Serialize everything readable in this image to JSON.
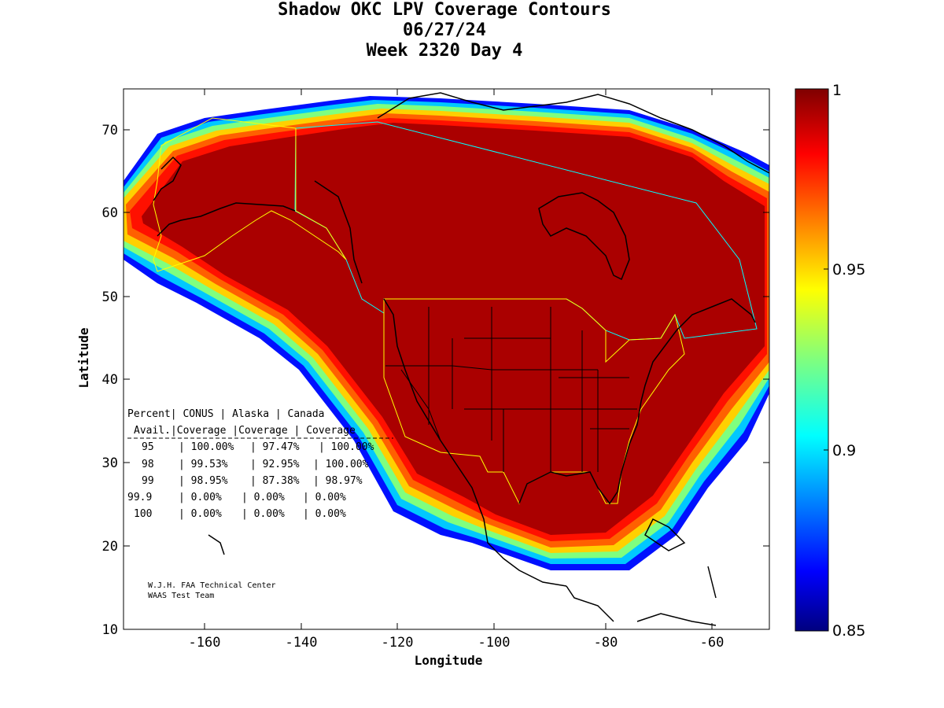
{
  "title": {
    "line1": "Shadow OKC LPV Coverage Contours",
    "line2": "06/27/24",
    "line3": "Week 2320 Day 4"
  },
  "axes": {
    "xlabel": "Longitude",
    "ylabel": "Latitude",
    "xticks": [
      "-160",
      "-140",
      "-120",
      "-100",
      "-80",
      "-60"
    ],
    "yticks": [
      "70",
      "60",
      "50",
      "40",
      "30",
      "20",
      "10"
    ]
  },
  "colorbar": {
    "ticks": [
      "1",
      "0.95",
      "0.9",
      "0.85"
    ],
    "range": [
      0.85,
      1
    ],
    "colormap": "jet"
  },
  "coverage_table": {
    "header1": [
      "Percent",
      "CONUS",
      "Alaska",
      "Canada"
    ],
    "header2": [
      "Avail.",
      "Coverage",
      "Coverage",
      "Coverage"
    ],
    "rows": [
      [
        "95",
        "100.00%",
        "97.47%",
        "100.00%"
      ],
      [
        "98",
        "99.53%",
        "92.95%",
        "100.00%"
      ],
      [
        "99",
        "98.95%",
        "87.38%",
        "98.97%"
      ],
      [
        "99.9",
        "0.00%",
        "0.00%",
        "0.00%"
      ],
      [
        "100",
        "0.00%",
        "0.00%",
        "0.00%"
      ]
    ]
  },
  "credit": {
    "line1": "W.J.H. FAA Technical Center",
    "line2": "WAAS Test Team"
  },
  "colors": {
    "coverage_full": "#aa0000",
    "boundary_cyan": "#00ffff",
    "boundary_yellow": "#ffff00"
  }
}
